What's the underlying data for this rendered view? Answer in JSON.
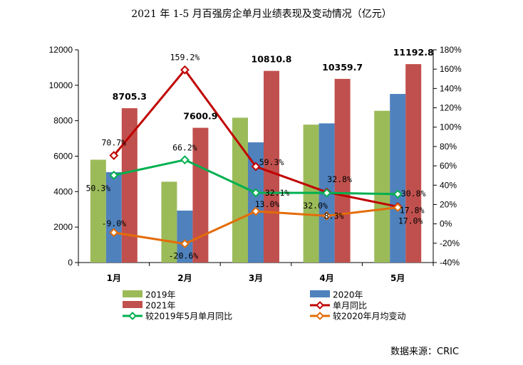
{
  "chart_data": {
    "type": "bar",
    "title": "2021 年 1-5 月百强房企单月业绩表现及变动情况（亿元）",
    "categories": [
      "1月",
      "2月",
      "3月",
      "4月",
      "5月"
    ],
    "y_left": {
      "ylim": [
        0,
        12000
      ],
      "ticks": [
        "0",
        "2000",
        "4000",
        "6000",
        "8000",
        "10000",
        "12000"
      ]
    },
    "y_right": {
      "ylim": [
        -40,
        180
      ],
      "ticks": [
        "-40%",
        "-20%",
        "0%",
        "20%",
        "40%",
        "60%",
        "80%",
        "100%",
        "120%",
        "140%",
        "160%",
        "180%"
      ]
    },
    "bar_series": [
      {
        "name": "2019年",
        "color": "#9bbb59",
        "values": [
          5800,
          4560,
          8170,
          7780,
          8560
        ]
      },
      {
        "name": "2020年",
        "color": "#4f81bd",
        "values": [
          5100,
          2930,
          6780,
          7850,
          9510
        ]
      },
      {
        "name": "2021年",
        "color": "#c0504d",
        "values": [
          8705.3,
          7600.9,
          10810.8,
          10359.7,
          11192.8
        ],
        "labels": [
          "8705.3",
          "7600.9",
          "10810.8",
          "10359.7",
          "11192.8"
        ]
      }
    ],
    "line_series": [
      {
        "name": "单月同比",
        "color": "#c00000",
        "values": [
          70.7,
          159.2,
          59.3,
          32.8,
          17.8
        ],
        "labels": [
          "70.7%",
          "159.2%",
          "59.3%",
          "32.8%",
          "17.8%"
        ]
      },
      {
        "name": "较2019年5月单月同比",
        "color": "#00b050",
        "values": [
          50.3,
          66.2,
          32.1,
          32.0,
          30.8
        ],
        "labels": [
          "50.3%",
          "66.2%",
          "32.1%",
          "32.0%",
          "30.8%"
        ]
      },
      {
        "name": "较2020年月均变动",
        "color": "#e36c09",
        "values": [
          -9.0,
          -20.6,
          13.0,
          8.3,
          17.0
        ],
        "labels": [
          "-9.0%",
          "-20.6%",
          "13.0%",
          "8.3%",
          "17.0%"
        ]
      }
    ],
    "legend": [
      "2019年",
      "2020年",
      "2021年",
      "单月同比",
      "较2019年5月单月同比",
      "较2020年月均变动"
    ],
    "legend_position": "bottom",
    "grid": false
  },
  "source_text": "数据来源：CRIC"
}
